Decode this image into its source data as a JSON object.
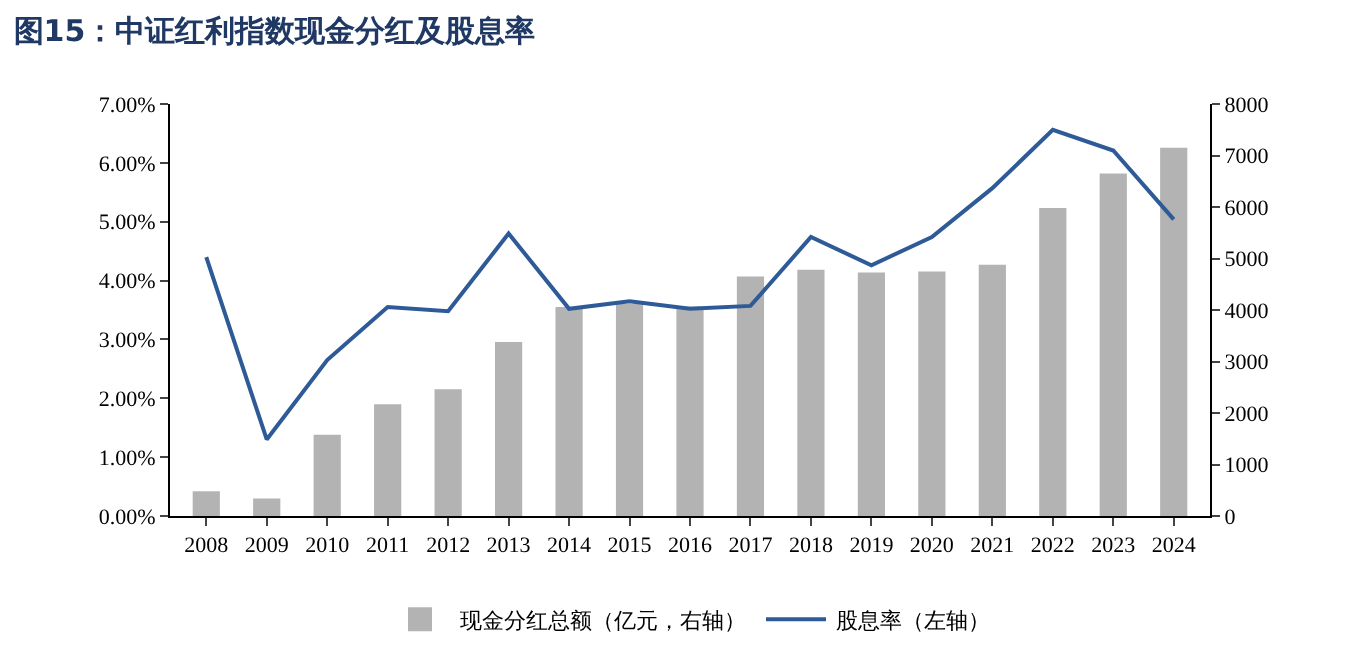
{
  "chart_data": {
    "type": "bar",
    "title": "图15：中证红利指数现金分红及股息率",
    "categories": [
      "2008",
      "2009",
      "2010",
      "2011",
      "2012",
      "2013",
      "2014",
      "2015",
      "2016",
      "2017",
      "2018",
      "2019",
      "2020",
      "2021",
      "2022",
      "2023",
      "2024"
    ],
    "series": [
      {
        "name": "现金分红总额（亿元，右轴）",
        "axis": "y2",
        "color": "#b3b3b3",
        "values": [
          480,
          340,
          1580,
          2170,
          2460,
          3380,
          4060,
          4120,
          4070,
          4650,
          4780,
          4730,
          4750,
          4880,
          5980,
          6650,
          7150
        ]
      },
      {
        "name": "股息率（左轴）",
        "type": "line",
        "color": "#2e5b97",
        "values": [
          4.4,
          1.3,
          2.65,
          3.55,
          3.48,
          4.8,
          3.52,
          3.65,
          3.52,
          3.57,
          4.74,
          4.26,
          4.74,
          5.57,
          6.56,
          6.21,
          5.04
        ]
      }
    ],
    "ylim": [
      0,
      7
    ],
    "yticks": [
      {
        "value": 0,
        "label": "0.00%"
      },
      {
        "value": 1,
        "label": "1.00%"
      },
      {
        "value": 2,
        "label": "2.00%"
      },
      {
        "value": 3,
        "label": "3.00%"
      },
      {
        "value": 4,
        "label": "4.00%"
      },
      {
        "value": 5,
        "label": "5.00%"
      },
      {
        "value": 6,
        "label": "6.00%"
      },
      {
        "value": 7,
        "label": "7.00%"
      }
    ],
    "y2lim": [
      0,
      8000
    ],
    "y2ticks": [
      0,
      1000,
      2000,
      3000,
      4000,
      5000,
      6000,
      7000,
      8000
    ],
    "legend": "bottom",
    "grid": false
  }
}
